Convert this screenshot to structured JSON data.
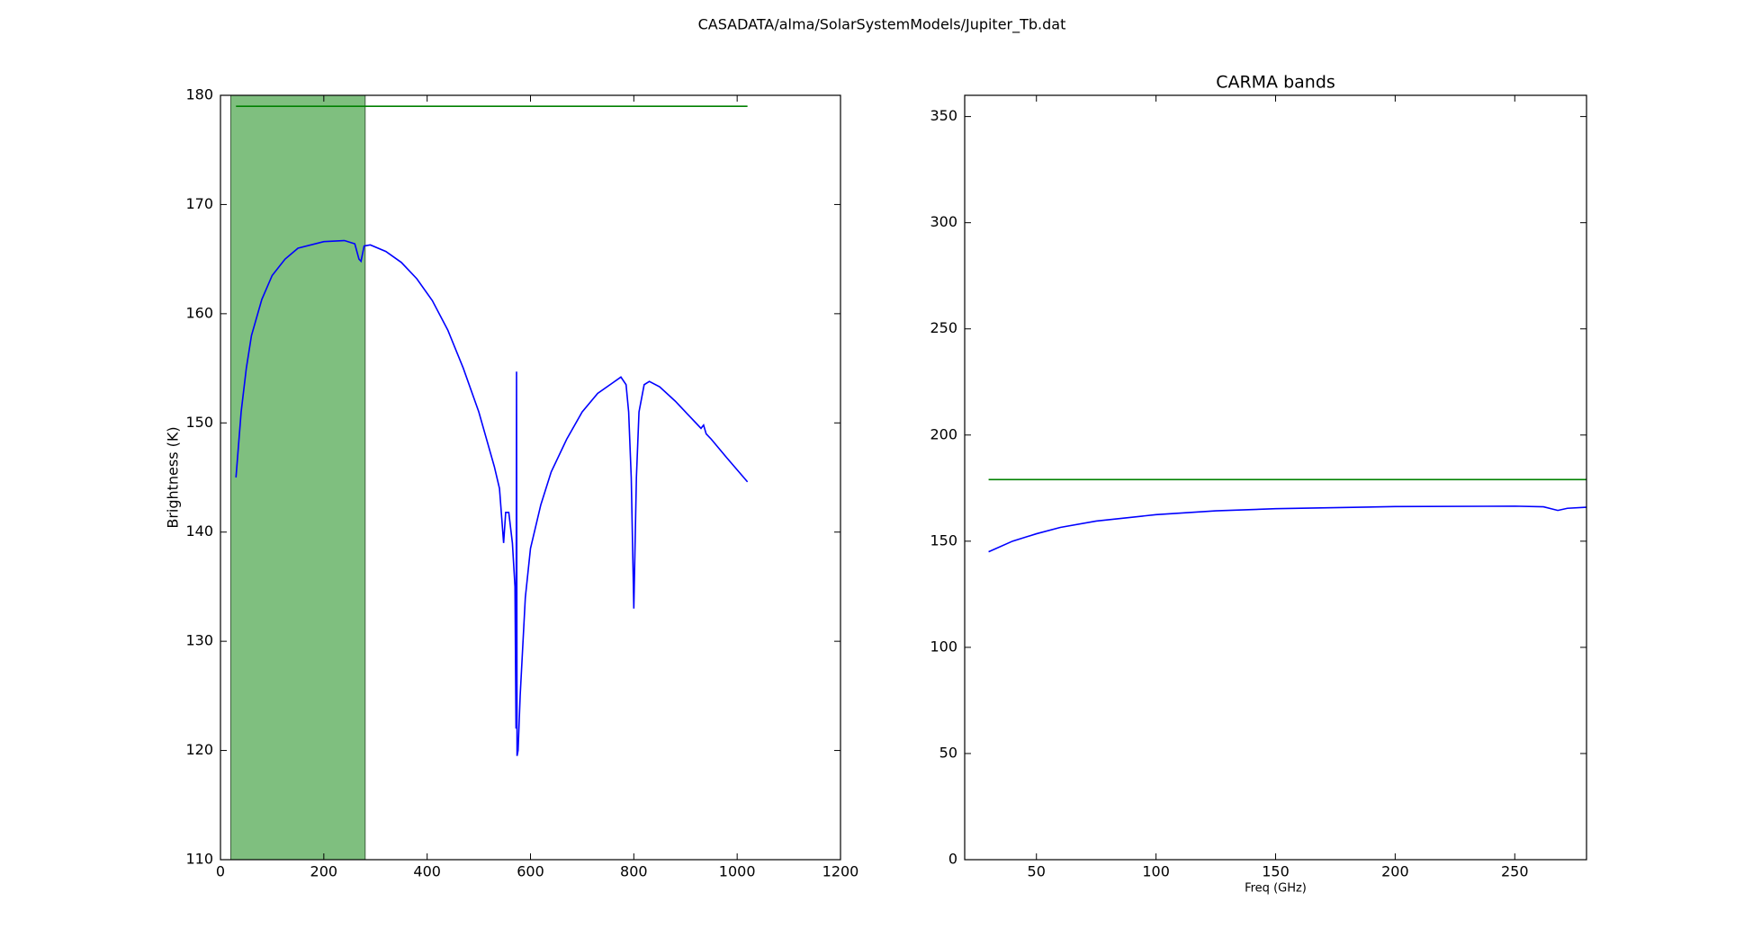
{
  "title": "CASADATA/alma/SolarSystemModels/Jupiter_Tb.dat",
  "chart_data": [
    {
      "type": "line",
      "ylabel": "Brightness (K)",
      "xlim": [
        0,
        1200
      ],
      "xticks": [
        0,
        200,
        400,
        600,
        800,
        1000,
        1200
      ],
      "ylim": [
        110,
        180
      ],
      "yticks": [
        110,
        120,
        130,
        140,
        150,
        160,
        170,
        180
      ],
      "spans": [
        {
          "xmin": 20,
          "xmax": 280,
          "color": "#7fbf7f"
        }
      ],
      "series": [
        {
          "color": "#0000ff",
          "x": [
            30,
            40,
            50,
            60,
            80,
            100,
            125,
            150,
            200,
            240,
            260,
            268,
            272,
            278,
            290,
            320,
            350,
            380,
            410,
            440,
            470,
            500,
            530,
            540,
            548,
            552,
            558,
            565,
            570,
            572,
            573,
            574,
            576,
            580,
            590,
            600,
            620,
            640,
            670,
            700,
            730,
            760,
            775,
            785,
            790,
            795,
            800,
            805,
            810,
            820,
            830,
            850,
            880,
            910,
            930,
            935,
            940,
            950,
            980,
            1000,
            1020
          ],
          "values": [
            145,
            151,
            155,
            158,
            161.3,
            163.5,
            165,
            166,
            166.6,
            166.7,
            166.4,
            165,
            164.8,
            166.2,
            166.3,
            165.7,
            164.7,
            163.2,
            161.2,
            158.5,
            155,
            151,
            146,
            144,
            139,
            141.8,
            141.8,
            139,
            135,
            122,
            154.7,
            119.5,
            120,
            125,
            134,
            138.5,
            142.5,
            145.5,
            148.5,
            151,
            152.7,
            153.7,
            154.2,
            153.5,
            151,
            145,
            133,
            145,
            151,
            153.5,
            153.8,
            153.3,
            152,
            150.5,
            149.5,
            149.8,
            149,
            148.5,
            146.8,
            145.7,
            144.6
          ]
        },
        {
          "color": "#008000",
          "x": [
            30,
            1020
          ],
          "values": [
            179,
            179
          ]
        }
      ]
    },
    {
      "type": "line",
      "title": "CARMA bands",
      "xlabel": "Freq (GHz)",
      "xlim": [
        20,
        280
      ],
      "xticks": [
        50,
        100,
        150,
        200,
        250
      ],
      "ylim": [
        0,
        360
      ],
      "yticks": [
        0,
        50,
        100,
        150,
        200,
        250,
        300,
        350
      ],
      "series": [
        {
          "color": "#0000ff",
          "x": [
            30,
            40,
            50,
            60,
            75,
            100,
            125,
            150,
            200,
            250,
            262,
            268,
            272,
            280
          ],
          "values": [
            145,
            150,
            153.5,
            156.5,
            159.5,
            162.5,
            164.3,
            165.3,
            166.3,
            166.5,
            166.2,
            164.5,
            165.5,
            166
          ]
        },
        {
          "color": "#008000",
          "x": [
            30,
            280
          ],
          "values": [
            179,
            179
          ]
        }
      ]
    }
  ]
}
